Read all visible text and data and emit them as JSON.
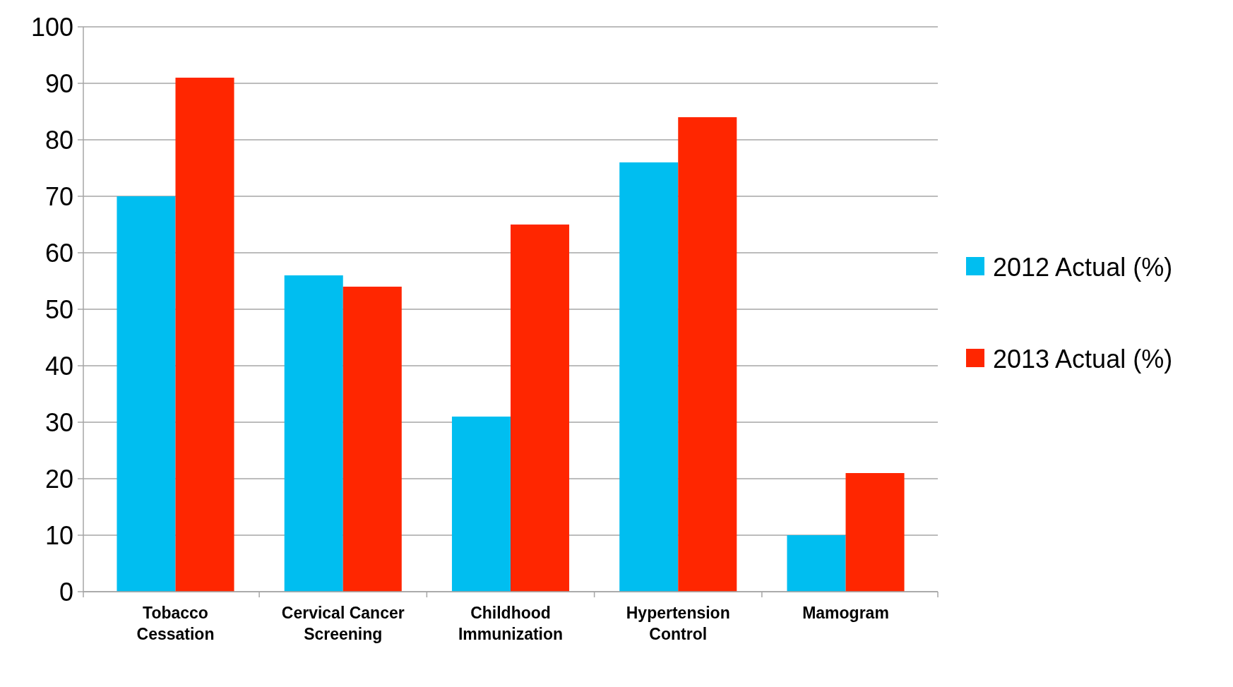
{
  "chart_data": {
    "type": "bar",
    "categories": [
      "Tobacco Cessation",
      "Cervical Cancer Screening",
      "Childhood Immunization",
      "Hypertension Control",
      "Mamogram"
    ],
    "series": [
      {
        "name": "2012 Actual (%)",
        "color": "#00bef0",
        "values": [
          70,
          56,
          31,
          76,
          10
        ]
      },
      {
        "name": "2013 Actual (%)",
        "color": "#ff2600",
        "values": [
          91,
          54,
          65,
          84,
          21
        ]
      }
    ],
    "ylim": [
      0,
      100
    ],
    "yticks": [
      0,
      10,
      20,
      30,
      40,
      50,
      60,
      70,
      80,
      90,
      100
    ],
    "grid": "y",
    "legend": "right"
  }
}
